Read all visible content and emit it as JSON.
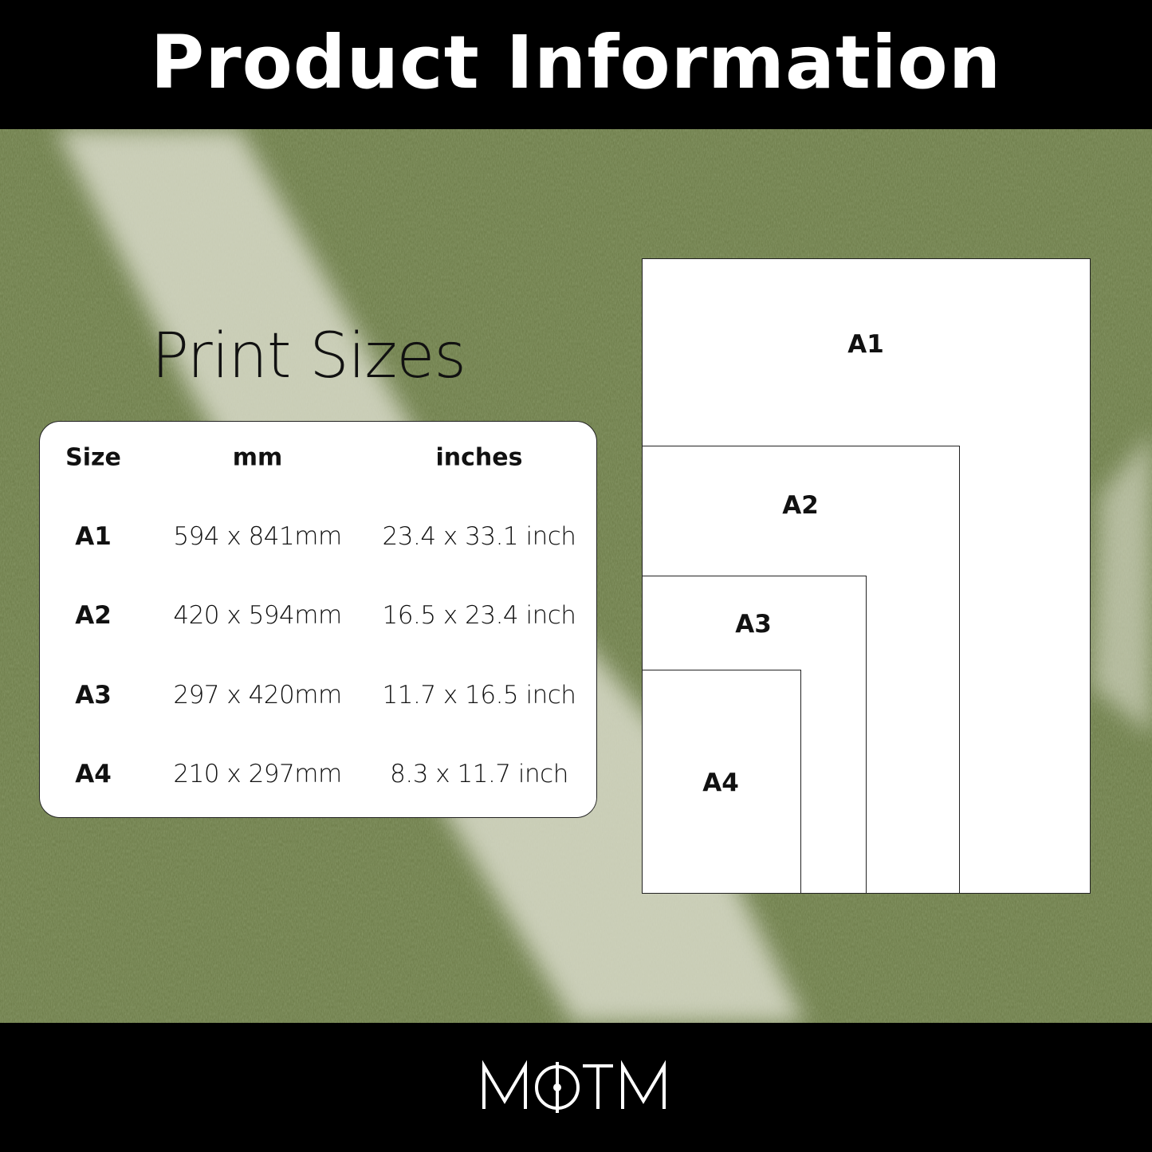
{
  "header": {
    "title": "Product Information"
  },
  "section": {
    "title": "Print Sizes"
  },
  "table": {
    "columns": [
      "Size",
      "mm",
      "inches"
    ],
    "rows": [
      {
        "size": "A1",
        "mm": "594 x 841mm",
        "inches": "23.4 x 33.1 inch"
      },
      {
        "size": "A2",
        "mm": "420 x 594mm",
        "inches": "16.5 x 23.4 inch"
      },
      {
        "size": "A3",
        "mm": "297 x 420mm",
        "inches": "11.7 x 16.5 inch"
      },
      {
        "size": "A4",
        "mm": "210 x 297mm",
        "inches": "8.3 x 11.7 inch"
      }
    ]
  },
  "diagram": {
    "labels": [
      "A1",
      "A2",
      "A3",
      "A4"
    ]
  },
  "footer": {
    "logo": "MOTM"
  },
  "colors": {
    "bars": "#000000",
    "grass": "#6f7d4c",
    "panel": "#ffffff"
  }
}
